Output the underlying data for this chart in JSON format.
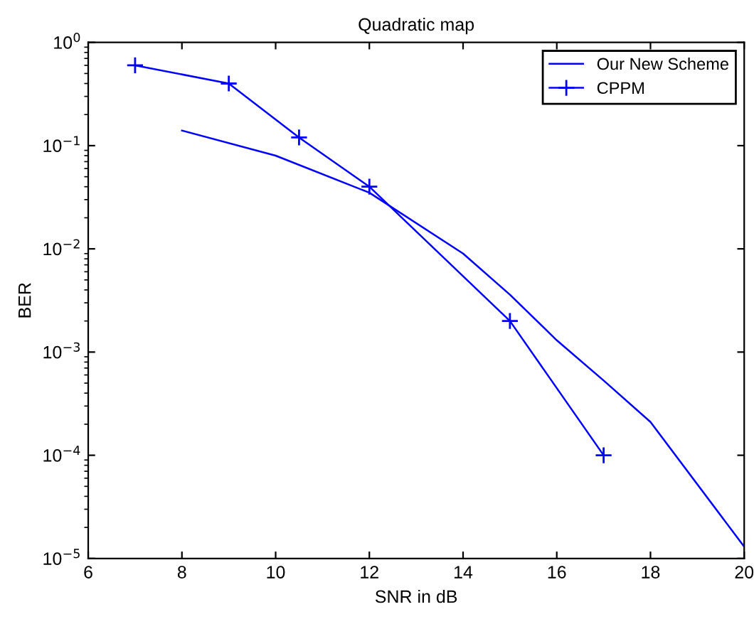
{
  "chart_data": {
    "type": "line",
    "title": "Quadratic map",
    "xlabel": "SNR in dB",
    "ylabel": "BER",
    "log": "y",
    "xlim": [
      6,
      20
    ],
    "xticks": [
      6,
      8,
      10,
      12,
      14,
      16,
      18,
      20
    ],
    "ylim": [
      1e-05,
      1
    ],
    "yticks": [
      {
        "value": 1e-05,
        "label": "10$^{−5}$"
      },
      {
        "value": 0.0001,
        "label": "10$^{−4}$"
      },
      {
        "value": 0.001,
        "label": "10$^{−3}$"
      },
      {
        "value": 0.01,
        "label": "10$^{−2}$"
      },
      {
        "value": 0.1,
        "label": "10$^{−1}$"
      },
      {
        "value": 1,
        "label": "10$^{0}$"
      }
    ],
    "grid": false,
    "legend": "top right",
    "series": [
      {
        "name": "Our New Scheme",
        "color": "#0000ff",
        "marker": "none",
        "x": [
          8,
          10,
          12,
          14,
          15,
          16,
          17,
          18,
          20
        ],
        "values": [
          0.14,
          0.08,
          0.035,
          0.009,
          0.0036,
          0.0013,
          0.00053,
          0.00021,
          1.3e-05
        ]
      },
      {
        "name": "CPPM",
        "color": "#0000ff",
        "marker": "cross",
        "x": [
          7,
          9,
          10.5,
          12,
          15,
          17
        ],
        "values": [
          0.6,
          0.4,
          0.12,
          0.04,
          0.002,
          0.0001
        ]
      }
    ]
  }
}
